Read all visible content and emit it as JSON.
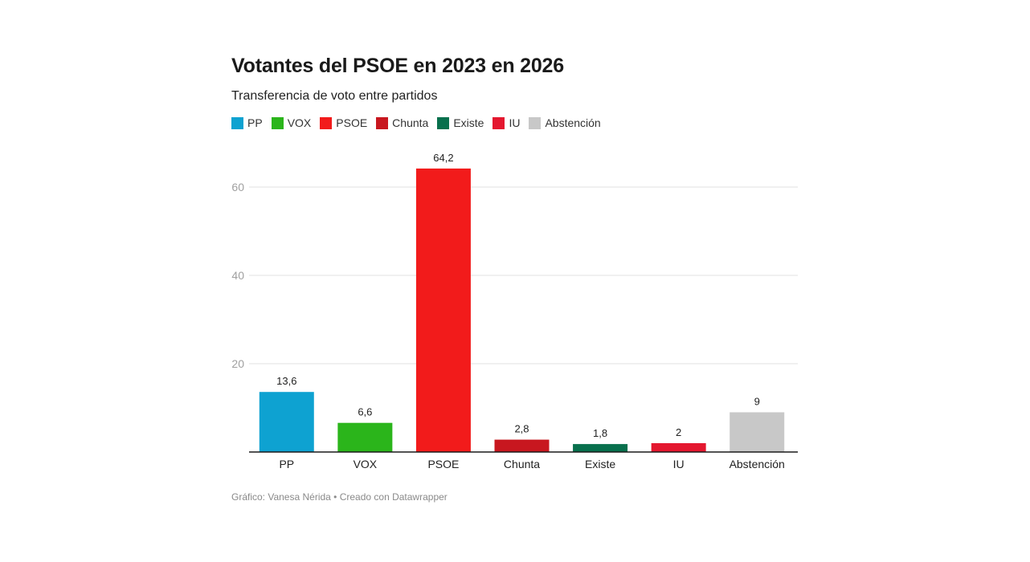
{
  "header": {
    "title": "Votantes del PSOE en 2023 en 2026",
    "subtitle": "Transferencia de voto entre partidos"
  },
  "legend": [
    {
      "label": "PP",
      "color": "#0ea2d1"
    },
    {
      "label": "VOX",
      "color": "#2bb51b"
    },
    {
      "label": "PSOE",
      "color": "#f21b1b"
    },
    {
      "label": "Chunta",
      "color": "#c8171f"
    },
    {
      "label": "Existe",
      "color": "#08704d"
    },
    {
      "label": "IU",
      "color": "#e4172f"
    },
    {
      "label": "Abstención",
      "color": "#c8c8c8"
    }
  ],
  "footer": "Gráfico: Vanesa Nérida • Creado con Datawrapper",
  "chart_data": {
    "type": "bar",
    "title": "Votantes del PSOE en 2023 en 2026",
    "subtitle": "Transferencia de voto entre partidos",
    "xlabel": "",
    "ylabel": "",
    "categories": [
      "PP",
      "VOX",
      "PSOE",
      "Chunta",
      "Existe",
      "IU",
      "Abstención"
    ],
    "values": [
      13.6,
      6.6,
      64.2,
      2.8,
      1.8,
      2,
      9
    ],
    "value_labels": [
      "13,6",
      "6,6",
      "64,2",
      "2,8",
      "1,8",
      "2",
      "9"
    ],
    "colors": [
      "#0ea2d1",
      "#2bb51b",
      "#f21b1b",
      "#c8171f",
      "#08704d",
      "#e4172f",
      "#c8c8c8"
    ],
    "yticks": [
      20,
      40,
      60
    ],
    "ylim": [
      0,
      64.2
    ],
    "grid": true,
    "legend_position": "top-left"
  }
}
